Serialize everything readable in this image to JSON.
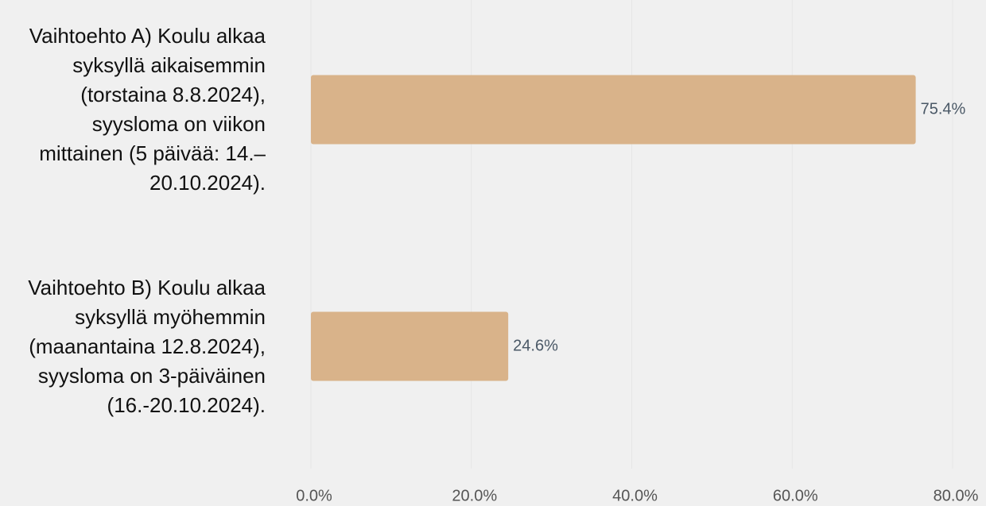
{
  "chart_data": {
    "type": "bar",
    "orientation": "horizontal",
    "categories": [
      "Vaihtoehto A) Koulu alkaa syksyllä aikaisemmin (torstaina 8.8.2024), syysloma on viikon mittainen (5 päivää: 14.–20.10.2024).",
      "Vaihtoehto B) Koulu alkaa syksyllä myöhemmin (maanantaina 12.8.2024), syysloma on 3-päiväinen (16.-20.10.2024)."
    ],
    "values": [
      75.4,
      24.6
    ],
    "value_labels": [
      "75.4%",
      "24.6%"
    ],
    "color": "#d9b38a",
    "xlim": [
      0,
      80
    ],
    "xticks": [
      {
        "value": 0,
        "label": "0.0%"
      },
      {
        "value": 20,
        "label": "20.0%"
      },
      {
        "value": 40,
        "label": "40.0%"
      },
      {
        "value": 60,
        "label": "60.0%"
      },
      {
        "value": 80,
        "label": "80.0%"
      }
    ],
    "grid": true
  }
}
